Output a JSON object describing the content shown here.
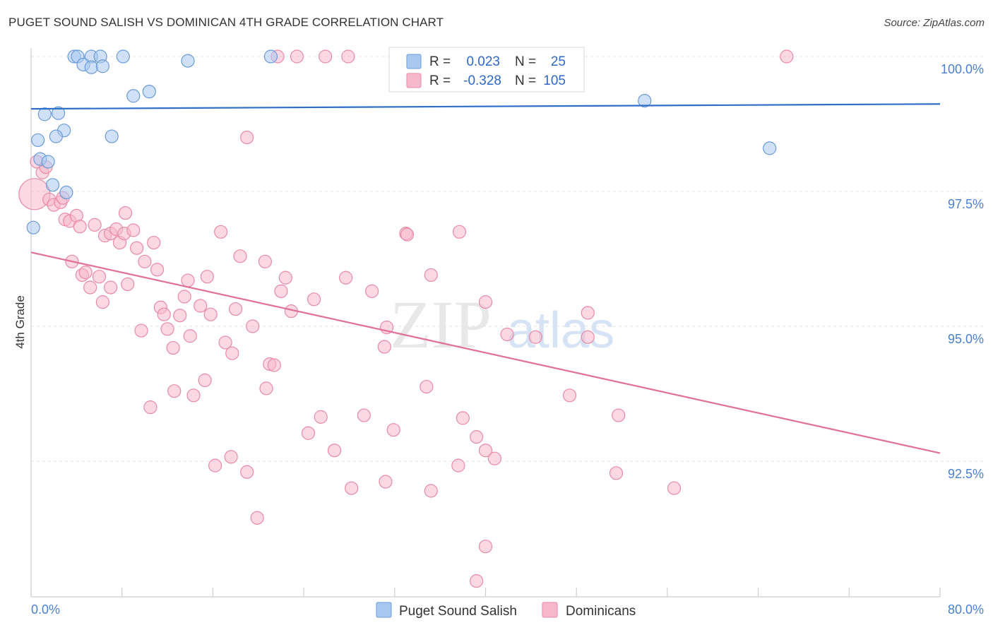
{
  "header": {
    "title": "PUGET SOUND SALISH VS DOMINICAN 4TH GRADE CORRELATION CHART",
    "source": "Source: ZipAtlas.com"
  },
  "watermark": {
    "zip": "ZIP",
    "atlas": "atlas"
  },
  "colors": {
    "blue_fill": "#a9c8f0",
    "blue_stroke": "#6a9bd8",
    "blue_line": "#2f6fc8",
    "pink_fill": "#f7b8cb",
    "pink_stroke": "#e88aa8",
    "pink_line": "#e0709a",
    "tick": "#4a7fd0",
    "grid": "#e3e3e3"
  },
  "legend": {
    "rows": [
      {
        "r_label": "R =",
        "r_value": "0.023",
        "n_label": "N =",
        "n_value": "25",
        "series": "blue"
      },
      {
        "r_label": "R =",
        "r_value": "-0.328",
        "n_label": "N =",
        "n_value": "105",
        "series": "pink"
      }
    ]
  },
  "chart_data": {
    "type": "scatter",
    "title": "PUGET SOUND SALISH VS DOMINICAN 4TH GRADE CORRELATION CHART",
    "xlabel": "",
    "ylabel": "4th Grade",
    "xlim": [
      0,
      80
    ],
    "ylim": [
      90.0,
      100.4
    ],
    "x_tick_labels": [
      "0.0%",
      "80.0%"
    ],
    "y_ticks": [
      100.0,
      97.5,
      95.0,
      92.5
    ],
    "y_tick_labels": [
      "100.0%",
      "97.5%",
      "95.0%",
      "92.5%"
    ],
    "legend_position": "bottom-center",
    "series": [
      {
        "name": "Puget Sound Salish",
        "color": "blue",
        "trend": {
          "x0": 0,
          "y0": 99.03,
          "x1": 80,
          "y1": 99.12
        },
        "points": [
          {
            "x": 3.8,
            "y": 100.0
          },
          {
            "x": 4.1,
            "y": 100.0
          },
          {
            "x": 5.3,
            "y": 100.0
          },
          {
            "x": 6.1,
            "y": 100.0
          },
          {
            "x": 8.1,
            "y": 100.0
          },
          {
            "x": 4.6,
            "y": 99.85
          },
          {
            "x": 5.3,
            "y": 99.8
          },
          {
            "x": 6.3,
            "y": 99.82
          },
          {
            "x": 13.8,
            "y": 99.92
          },
          {
            "x": 10.4,
            "y": 99.35
          },
          {
            "x": 9.0,
            "y": 99.27
          },
          {
            "x": 1.2,
            "y": 98.93
          },
          {
            "x": 2.4,
            "y": 98.95
          },
          {
            "x": 2.9,
            "y": 98.63
          },
          {
            "x": 0.6,
            "y": 98.45
          },
          {
            "x": 2.2,
            "y": 98.52
          },
          {
            "x": 7.1,
            "y": 98.52
          },
          {
            "x": 0.8,
            "y": 98.1
          },
          {
            "x": 1.5,
            "y": 98.05
          },
          {
            "x": 1.9,
            "y": 97.62
          },
          {
            "x": 3.1,
            "y": 97.48
          },
          {
            "x": 0.2,
            "y": 96.83
          },
          {
            "x": 54.0,
            "y": 99.18
          },
          {
            "x": 65.0,
            "y": 98.3
          },
          {
            "x": 21.1,
            "y": 100.0
          }
        ]
      },
      {
        "name": "Dominicans",
        "color": "pink",
        "trend": {
          "x0": 0,
          "y0": 96.37,
          "x1": 80,
          "y1": 92.65
        },
        "points": [
          {
            "x": 0.3,
            "y": 97.45,
            "big": true
          },
          {
            "x": 0.5,
            "y": 98.05
          },
          {
            "x": 1.0,
            "y": 97.85
          },
          {
            "x": 1.3,
            "y": 97.95
          },
          {
            "x": 1.6,
            "y": 97.35
          },
          {
            "x": 2.0,
            "y": 97.25
          },
          {
            "x": 2.6,
            "y": 97.3
          },
          {
            "x": 2.8,
            "y": 97.38
          },
          {
            "x": 3.0,
            "y": 96.98
          },
          {
            "x": 3.4,
            "y": 96.95
          },
          {
            "x": 4.0,
            "y": 97.05
          },
          {
            "x": 4.3,
            "y": 96.85
          },
          {
            "x": 5.6,
            "y": 96.88
          },
          {
            "x": 6.5,
            "y": 96.68
          },
          {
            "x": 7.0,
            "y": 96.72
          },
          {
            "x": 7.5,
            "y": 96.8
          },
          {
            "x": 7.8,
            "y": 96.55
          },
          {
            "x": 8.2,
            "y": 96.72
          },
          {
            "x": 8.3,
            "y": 97.1
          },
          {
            "x": 9.0,
            "y": 96.78
          },
          {
            "x": 9.3,
            "y": 96.45
          },
          {
            "x": 10.0,
            "y": 96.2
          },
          {
            "x": 10.8,
            "y": 96.55
          },
          {
            "x": 11.1,
            "y": 96.05
          },
          {
            "x": 3.6,
            "y": 96.2
          },
          {
            "x": 4.5,
            "y": 95.95
          },
          {
            "x": 4.8,
            "y": 96.0
          },
          {
            "x": 5.2,
            "y": 95.72
          },
          {
            "x": 6.0,
            "y": 95.92
          },
          {
            "x": 6.3,
            "y": 95.45
          },
          {
            "x": 7.0,
            "y": 95.72
          },
          {
            "x": 8.5,
            "y": 95.78
          },
          {
            "x": 9.7,
            "y": 94.92
          },
          {
            "x": 11.4,
            "y": 95.35
          },
          {
            "x": 11.7,
            "y": 95.22
          },
          {
            "x": 12.0,
            "y": 94.95
          },
          {
            "x": 12.5,
            "y": 94.6
          },
          {
            "x": 13.1,
            "y": 95.2
          },
          {
            "x": 13.5,
            "y": 95.55
          },
          {
            "x": 13.8,
            "y": 95.85
          },
          {
            "x": 14.0,
            "y": 94.82
          },
          {
            "x": 14.9,
            "y": 95.38
          },
          {
            "x": 15.5,
            "y": 95.92
          },
          {
            "x": 15.8,
            "y": 95.22
          },
          {
            "x": 16.7,
            "y": 96.75
          },
          {
            "x": 17.1,
            "y": 94.7
          },
          {
            "x": 17.7,
            "y": 94.5
          },
          {
            "x": 18.0,
            "y": 95.32
          },
          {
            "x": 18.4,
            "y": 96.3
          },
          {
            "x": 19.0,
            "y": 98.5
          },
          {
            "x": 19.5,
            "y": 95.0
          },
          {
            "x": 20.6,
            "y": 96.2
          },
          {
            "x": 21.0,
            "y": 94.3
          },
          {
            "x": 21.4,
            "y": 94.28
          },
          {
            "x": 22.0,
            "y": 95.65
          },
          {
            "x": 22.4,
            "y": 95.9
          },
          {
            "x": 22.9,
            "y": 95.28
          },
          {
            "x": 23.4,
            "y": 100.0
          },
          {
            "x": 24.9,
            "y": 95.5
          },
          {
            "x": 27.7,
            "y": 95.9
          },
          {
            "x": 30.0,
            "y": 95.65
          },
          {
            "x": 31.3,
            "y": 94.98
          },
          {
            "x": 31.1,
            "y": 94.62
          },
          {
            "x": 33.0,
            "y": 96.72
          },
          {
            "x": 33.1,
            "y": 96.7
          },
          {
            "x": 35.2,
            "y": 95.95
          },
          {
            "x": 37.7,
            "y": 96.75
          },
          {
            "x": 40.0,
            "y": 95.45
          },
          {
            "x": 49.0,
            "y": 95.25
          },
          {
            "x": 41.9,
            "y": 94.85
          },
          {
            "x": 10.5,
            "y": 93.5
          },
          {
            "x": 12.6,
            "y": 93.8
          },
          {
            "x": 14.3,
            "y": 93.72
          },
          {
            "x": 15.3,
            "y": 94.0
          },
          {
            "x": 20.7,
            "y": 93.85
          },
          {
            "x": 25.5,
            "y": 93.32
          },
          {
            "x": 24.4,
            "y": 93.02
          },
          {
            "x": 26.7,
            "y": 92.7
          },
          {
            "x": 29.3,
            "y": 93.35
          },
          {
            "x": 31.9,
            "y": 93.08
          },
          {
            "x": 34.8,
            "y": 93.88
          },
          {
            "x": 38.0,
            "y": 93.3
          },
          {
            "x": 39.2,
            "y": 92.95
          },
          {
            "x": 40.8,
            "y": 92.55
          },
          {
            "x": 40.0,
            "y": 92.7
          },
          {
            "x": 47.4,
            "y": 93.72
          },
          {
            "x": 51.7,
            "y": 93.35
          },
          {
            "x": 16.2,
            "y": 92.42
          },
          {
            "x": 17.6,
            "y": 92.58
          },
          {
            "x": 19.0,
            "y": 92.3
          },
          {
            "x": 28.2,
            "y": 92.0
          },
          {
            "x": 31.2,
            "y": 92.12
          },
          {
            "x": 35.2,
            "y": 91.95
          },
          {
            "x": 37.6,
            "y": 92.42
          },
          {
            "x": 51.5,
            "y": 92.28
          },
          {
            "x": 56.6,
            "y": 92.0
          },
          {
            "x": 19.9,
            "y": 91.45
          },
          {
            "x": 40.0,
            "y": 90.92
          },
          {
            "x": 39.2,
            "y": 90.28
          },
          {
            "x": 21.7,
            "y": 100.0
          },
          {
            "x": 25.9,
            "y": 100.0
          },
          {
            "x": 27.9,
            "y": 100.0
          },
          {
            "x": 66.5,
            "y": 100.0
          },
          {
            "x": 49.0,
            "y": 94.8
          },
          {
            "x": 44.4,
            "y": 94.8
          }
        ]
      }
    ]
  }
}
